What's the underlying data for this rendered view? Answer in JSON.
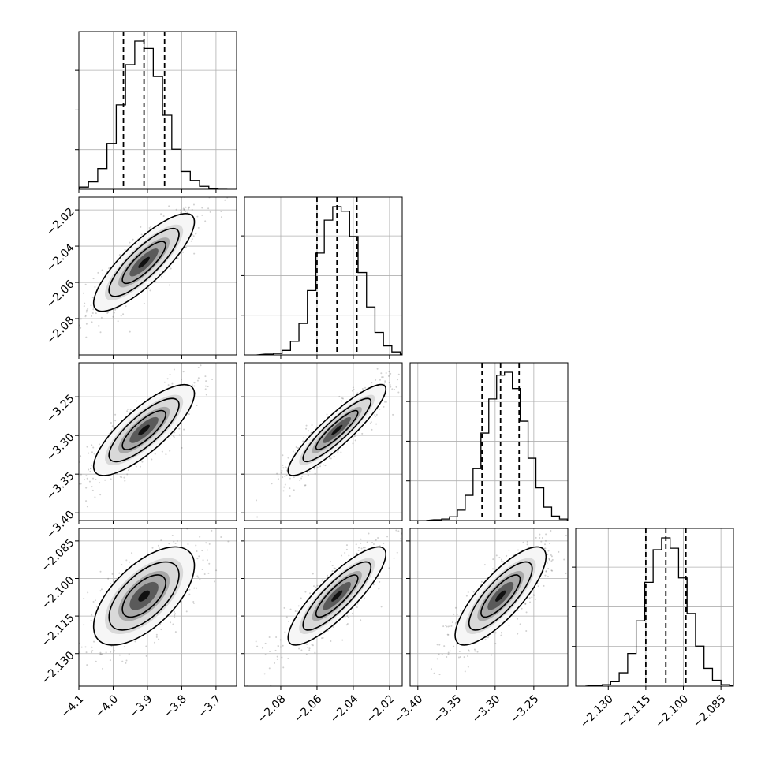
{
  "chart_data": {
    "type": "corner",
    "colors": {
      "line": "#000000",
      "grid": "#b0b0b0",
      "scatter": "#555555",
      "density_dark": "#000000",
      "density_light": "#ffffff"
    },
    "grid": true,
    "quantile_lines": "dashed",
    "parameters": [
      {
        "center": -3.91,
        "sigma": 0.06,
        "q16": -3.97,
        "q50": -3.91,
        "q84": -3.85,
        "range": [
          -4.1,
          -3.64
        ],
        "ticks": [
          -4.1,
          -4.0,
          -3.9,
          -3.8,
          -3.7
        ],
        "tick_labels": [
          "−4.1",
          "−4.0",
          "−3.9",
          "−3.8",
          "−3.7"
        ]
      },
      {
        "center": -2.049,
        "sigma": 0.011,
        "q16": -2.06,
        "q50": -2.049,
        "q84": -2.038,
        "range": [
          -2.1,
          -2.013
        ],
        "ticks": [
          -2.08,
          -2.06,
          -2.04,
          -2.02
        ],
        "tick_labels": [
          "−2.08",
          "−2.06",
          "−2.04",
          "−2.02"
        ]
      },
      {
        "center": -3.293,
        "sigma": 0.024,
        "q16": -3.317,
        "q50": -3.293,
        "q84": -3.269,
        "range": [
          -3.41,
          -3.206
        ],
        "ticks": [
          -3.4,
          -3.35,
          -3.3,
          -3.25
        ],
        "tick_labels": [
          "−3.40",
          "−3.35",
          "−3.30",
          "−3.25"
        ]
      },
      {
        "center": -2.107,
        "sigma": 0.008,
        "q16": -2.115,
        "q50": -2.107,
        "q84": -2.099,
        "range": [
          -2.143,
          -2.08
        ],
        "ticks": [
          -2.13,
          -2.115,
          -2.1,
          -2.085
        ],
        "tick_labels": [
          "−2.130",
          "−2.115",
          "−2.100",
          "−2.085"
        ]
      }
    ],
    "correlations": [
      [
        1,
        0.83,
        0.8,
        0.62
      ],
      [
        0.83,
        1,
        0.9,
        0.85
      ],
      [
        0.8,
        0.9,
        1,
        0.8
      ],
      [
        0.62,
        0.85,
        0.8,
        1
      ]
    ],
    "histograms": [
      [
        1,
        3,
        10,
        28,
        62,
        114,
        168,
        200,
        190,
        152,
        100,
        54,
        24,
        12,
        4,
        1
      ],
      [
        1,
        2,
        6,
        18,
        42,
        86,
        136,
        180,
        198,
        192,
        158,
        110,
        64,
        30,
        12,
        4,
        1
      ],
      [
        1,
        2,
        5,
        14,
        34,
        70,
        118,
        164,
        196,
        200,
        178,
        134,
        84,
        44,
        18,
        6,
        2
      ],
      [
        1,
        2,
        6,
        18,
        44,
        88,
        140,
        184,
        200,
        186,
        146,
        98,
        54,
        24,
        8,
        2,
        1
      ]
    ]
  }
}
